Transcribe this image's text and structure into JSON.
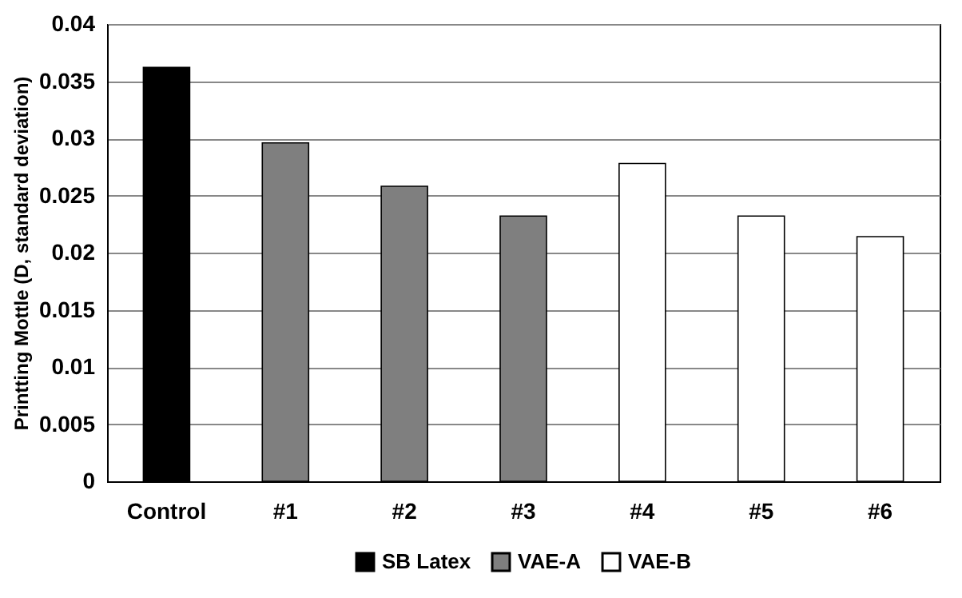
{
  "chart_data": {
    "type": "bar",
    "ylabel": "Printting Mottle (D, standard deviation)",
    "categories": [
      "Control",
      "#1",
      "#2",
      "#3",
      "#4",
      "#5",
      "#6"
    ],
    "series": [
      {
        "name": "SB Latex",
        "color": "#000000",
        "values": [
          0.0362,
          null,
          null,
          null,
          null,
          null,
          null
        ]
      },
      {
        "name": "VAE-A",
        "color": "#7f7f7f",
        "values": [
          null,
          0.0296,
          0.0258,
          0.0232,
          null,
          null,
          null
        ]
      },
      {
        "name": "VAE-B",
        "color": "#ffffff",
        "values": [
          null,
          null,
          null,
          null,
          0.0278,
          0.0232,
          0.0214
        ]
      }
    ],
    "ylim": [
      0,
      0.04
    ],
    "yticks": [
      0,
      0.005,
      0.01,
      0.015,
      0.02,
      0.025,
      0.03,
      0.035,
      0.04
    ],
    "grid": "y",
    "legend": "bottom"
  }
}
